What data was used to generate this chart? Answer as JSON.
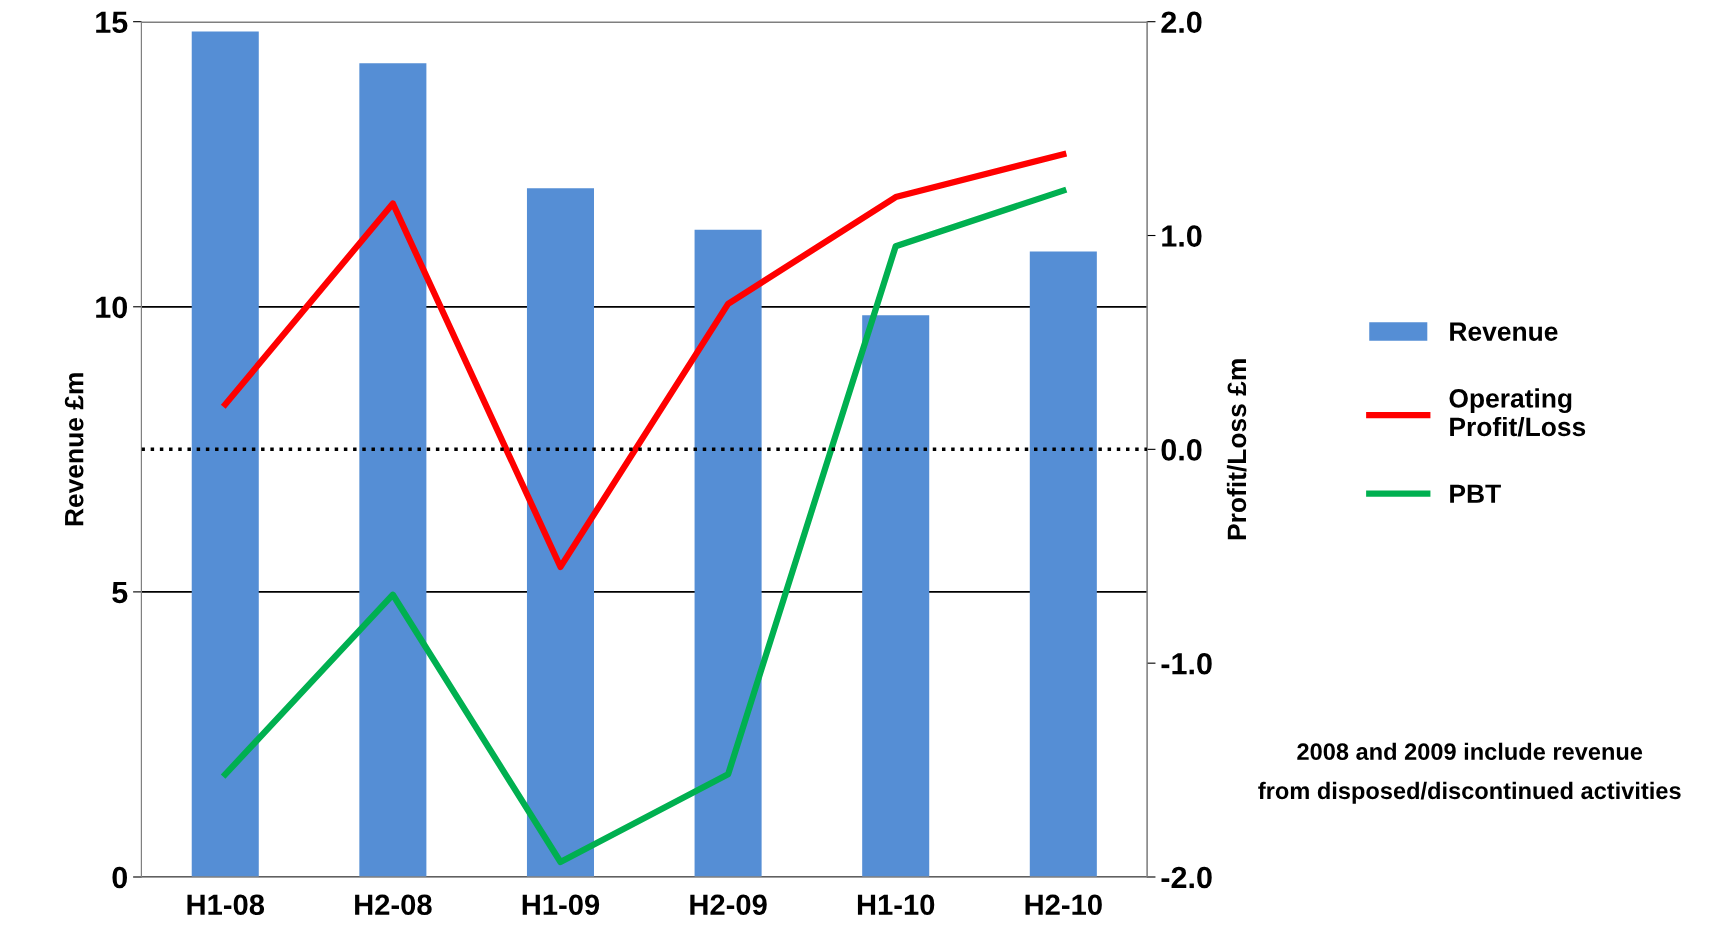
{
  "chart_data": {
    "type": "bar",
    "ylabel": "Revenue £m",
    "y2label": "Profit/Loss £m",
    "categories": [
      "H1-08",
      "H2-08",
      "H1-09",
      "H2-09",
      "H1-10",
      "H2-10"
    ],
    "series": [
      {
        "name": "Revenue",
        "color": "#558ed5",
        "values": [
          14.83,
          14.27,
          12.08,
          11.35,
          9.85,
          10.97
        ]
      },
      {
        "name": "Operating\nProfit/Loss",
        "type": "line",
        "axis": "y2",
        "color": "#ff0000",
        "values": [
          0.21,
          1.15,
          -0.55,
          0.68,
          1.18,
          1.38
        ]
      },
      {
        "name": "PBT",
        "type": "line",
        "axis": "y2",
        "color": "#00b050",
        "values": [
          -1.52,
          -0.68,
          -1.93,
          -1.52,
          0.95,
          1.21
        ]
      }
    ],
    "ylim": [
      0,
      15
    ],
    "yticks": [
      0,
      5,
      10,
      15
    ],
    "y2lim": [
      -2,
      2
    ],
    "y2ticks": [
      {
        "value": -2,
        "label": "-2.0"
      },
      {
        "value": -1,
        "label": "-1.0"
      },
      {
        "value": 0,
        "label": "0.0"
      },
      {
        "value": 1,
        "label": "1.0"
      },
      {
        "value": 2,
        "label": "2.0"
      }
    ],
    "ref_lines": [
      {
        "axis": "y2",
        "value": 0,
        "color": "#000000",
        "line_style": "dotted"
      }
    ],
    "grid": "y",
    "legend": "right",
    "marker": "none",
    "line_style": "solid",
    "annotations": [
      "2008 and 2009 include revenue\nfrom disposed/discontinued activities"
    ]
  }
}
